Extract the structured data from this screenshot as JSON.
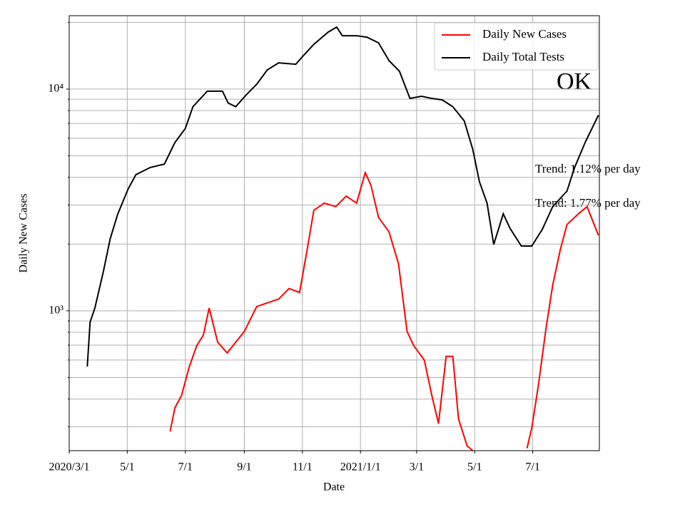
{
  "chart_data": {
    "type": "line",
    "x_label": "Date",
    "y_label": "Daily New Cases",
    "log_y": true,
    "grid": true,
    "legend_position": "upper right",
    "xlim": [
      "2020-03-01",
      "2021-09-09"
    ],
    "xticks": [
      {
        "value": "2020-03-01",
        "label": "2020/3/1"
      },
      {
        "value": "2020-05-01",
        "label": "5/1"
      },
      {
        "value": "2020-07-01",
        "label": "7/1"
      },
      {
        "value": "2020-09-01",
        "label": "9/1"
      },
      {
        "value": "2020-11-01",
        "label": "11/1"
      },
      {
        "value": "2021-01-01",
        "label": "2021/1/1"
      },
      {
        "value": "2021-03-01",
        "label": "3/1"
      },
      {
        "value": "2021-05-01",
        "label": "5/1"
      },
      {
        "value": "2021-07-01",
        "label": "7/1"
      }
    ],
    "ylim": [
      234,
      21430
    ],
    "yticks": [
      {
        "value": 1000,
        "label": "10³"
      },
      {
        "value": 10000,
        "label": "10⁴"
      }
    ],
    "minor_yticks": [
      300,
      400,
      500,
      600,
      700,
      800,
      900,
      2000,
      3000,
      4000,
      5000,
      6000,
      7000,
      8000,
      9000,
      20000
    ],
    "annotations": [
      {
        "text": "OK"
      },
      {
        "text": "Trend: 1.12% per day"
      },
      {
        "text": "Trend: 1.77% per day"
      }
    ],
    "series": [
      {
        "name": "Daily New Cases",
        "color": "#ff0000",
        "x": [
          "2020-06-15",
          "2020-06-20",
          "2020-06-27",
          "2020-07-05",
          "2020-07-13",
          "2020-07-20",
          "2020-07-26",
          "2020-08-04",
          "2020-08-14",
          "2020-08-23",
          "2020-09-01",
          "2020-09-14",
          "2020-09-25",
          "2020-10-07",
          "2020-10-18",
          "2020-10-29",
          "2020-11-06",
          "2020-11-13",
          "2020-11-24",
          "2020-12-06",
          "2020-12-17",
          "2020-12-28",
          "2021-01-06",
          "2021-01-12",
          "2021-01-20",
          "2021-01-31",
          "2021-02-10",
          "2021-02-19",
          "2021-02-26",
          "2021-03-09",
          "2021-03-17",
          "2021-03-24",
          "2021-04-01",
          "2021-04-08",
          "2021-04-14",
          "2021-04-23",
          "2021-04-29",
          "2021-05-31",
          "2021-06-25",
          "2021-06-30",
          "2021-07-07",
          "2021-07-15",
          "2021-07-22",
          "2021-07-30",
          "2021-08-06",
          "2021-08-18",
          "2021-08-27",
          "2021-09-08"
        ],
        "values": [
          286,
          365,
          415,
          557,
          696,
          778,
          1030,
          722,
          646,
          722,
          807,
          1045,
          1085,
          1130,
          1260,
          1210,
          1890,
          2840,
          3060,
          2950,
          3290,
          3060,
          4200,
          3680,
          2640,
          2270,
          1630,
          807,
          696,
          600,
          415,
          310,
          623,
          623,
          325,
          246,
          234,
          null,
          240,
          297,
          463,
          837,
          1305,
          1890,
          2450,
          2740,
          2950,
          2190
        ]
      },
      {
        "name": "Daily Total Tests",
        "color": "#000000",
        "x": [
          "2020-03-20",
          "2020-03-23",
          "2020-03-28",
          "2020-04-06",
          "2020-04-13",
          "2020-04-21",
          "2020-05-02",
          "2020-05-10",
          "2020-05-25",
          "2020-06-09",
          "2020-06-20",
          "2020-07-01",
          "2020-07-09",
          "2020-07-24",
          "2020-08-09",
          "2020-08-15",
          "2020-08-23",
          "2020-09-03",
          "2020-09-14",
          "2020-09-25",
          "2020-10-07",
          "2020-10-25",
          "2020-11-02",
          "2020-11-13",
          "2020-11-28",
          "2020-12-07",
          "2020-12-13",
          "2020-12-28",
          "2021-01-08",
          "2021-01-20",
          "2021-01-31",
          "2021-02-11",
          "2021-02-22",
          "2021-03-06",
          "2021-03-17",
          "2021-03-28",
          "2021-04-08",
          "2021-04-20",
          "2021-04-29",
          "2021-05-06",
          "2021-05-14",
          "2021-05-21",
          "2021-05-31",
          "2021-06-07",
          "2021-06-19",
          "2021-06-30",
          "2021-07-11",
          "2021-07-22",
          "2021-08-06",
          "2021-08-14",
          "2021-08-25",
          "2021-09-08"
        ],
        "values": [
          560,
          890,
          1030,
          1510,
          2110,
          2730,
          3550,
          4110,
          4430,
          4590,
          5740,
          6640,
          8330,
          9780,
          9780,
          8650,
          8330,
          9420,
          10520,
          12200,
          13140,
          12940,
          14150,
          15910,
          18060,
          19030,
          17400,
          17400,
          17140,
          16160,
          13440,
          12020,
          9080,
          9280,
          9080,
          8940,
          8330,
          7190,
          5340,
          3820,
          3060,
          1990,
          2740,
          2360,
          1960,
          1960,
          2330,
          2950,
          3470,
          4430,
          5740,
          7630
        ]
      }
    ]
  }
}
